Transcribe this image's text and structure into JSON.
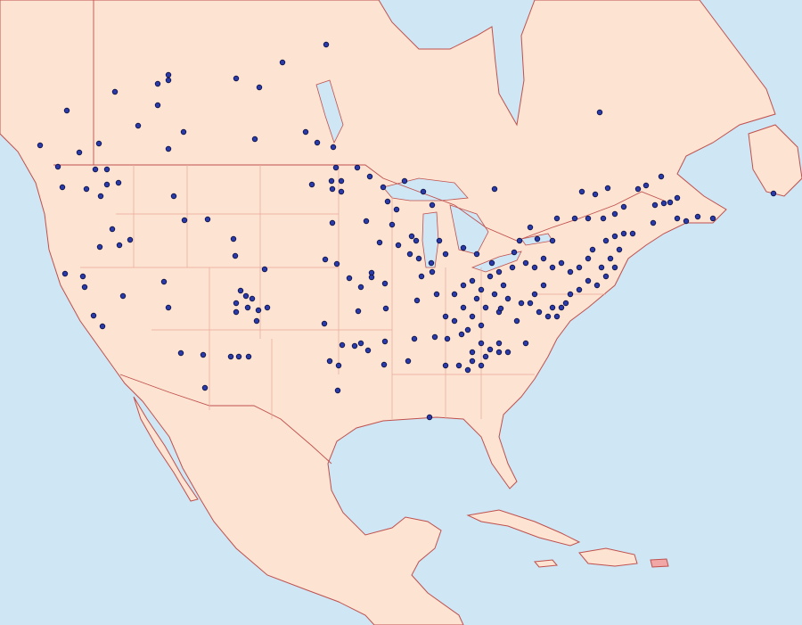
{
  "map": {
    "type": "occurrence-dot-map",
    "region": "North America",
    "colors": {
      "ocean": "#cfe6f4",
      "land": "#fde3d2",
      "border": "#c0504d",
      "subdivision_border": "#e9a99a",
      "lake": "#cfe6f4",
      "highlight_land": "#f2a7a7",
      "dot_fill": "#2a3aa8",
      "dot_stroke": "#0a0f40"
    },
    "markers": {
      "icon": "filled-circle"
    }
  }
}
